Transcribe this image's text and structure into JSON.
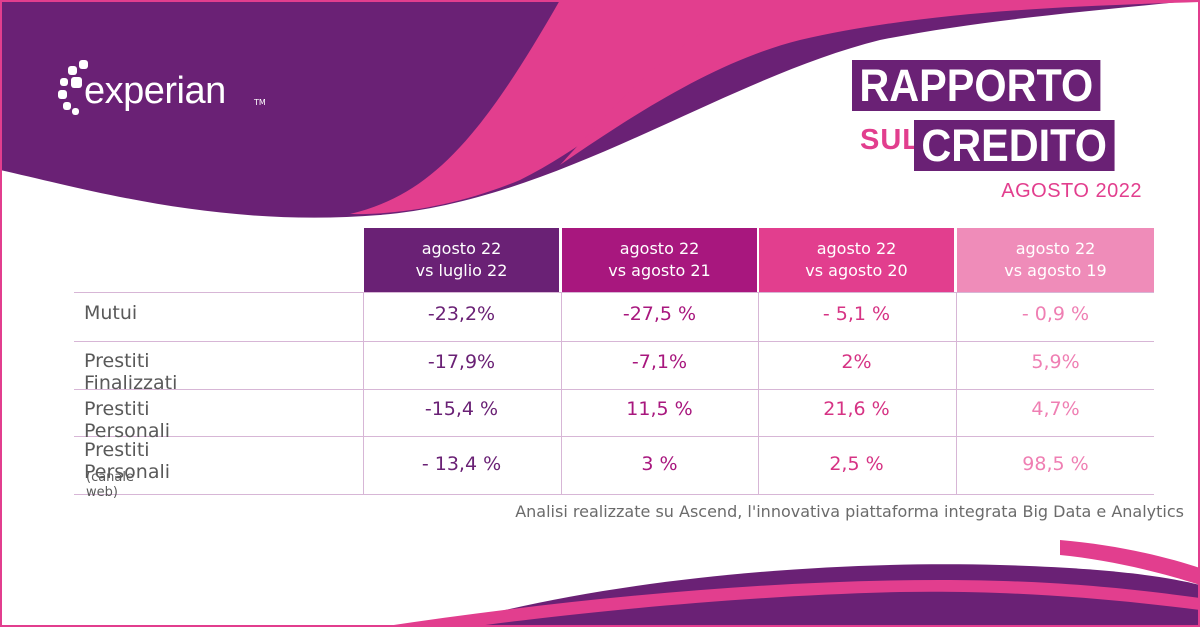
{
  "brand": {
    "logo_text": "experian",
    "logo_tm": "TM",
    "colors": {
      "purple": "#6a2175",
      "magenta": "#a8177e",
      "pink": "#e23e8e",
      "light_pink": "#ef8cb9"
    }
  },
  "title": {
    "line1": "RAPPORTO",
    "sul": "SUL",
    "line2": "CREDITO",
    "date": "AGOSTO 2022"
  },
  "table": {
    "columns": [
      {
        "line1": "agosto 22",
        "line2": "vs luglio 22"
      },
      {
        "line1": "agosto 22",
        "line2": "vs agosto 21"
      },
      {
        "line1": "agosto 22",
        "line2": "vs agosto 20"
      },
      {
        "line1": "agosto 22",
        "line2": "vs agosto 19"
      }
    ],
    "rows": [
      {
        "label": "Mutui",
        "sub": "",
        "values": [
          "-23,2%",
          "-27,5 %",
          "- 5,1 %",
          "- 0,9 %"
        ]
      },
      {
        "label": "Prestiti Finalizzati",
        "sub": "",
        "values": [
          "-17,9%",
          "-7,1%",
          "2%",
          "5,9%"
        ]
      },
      {
        "label": "Prestiti Personali",
        "sub": "",
        "values": [
          "-15,4 %",
          "11,5 %",
          "21,6 %",
          "4,7%"
        ]
      },
      {
        "label": "Prestiti Personali",
        "sub": "(canale web)",
        "values": [
          "- 13,4 %",
          "3 %",
          "2,5 %",
          "98,5 %"
        ]
      }
    ]
  },
  "footnote": "Analisi realizzate su Ascend, l'innovativa piattaforma integrata Big Data e Analytics"
}
